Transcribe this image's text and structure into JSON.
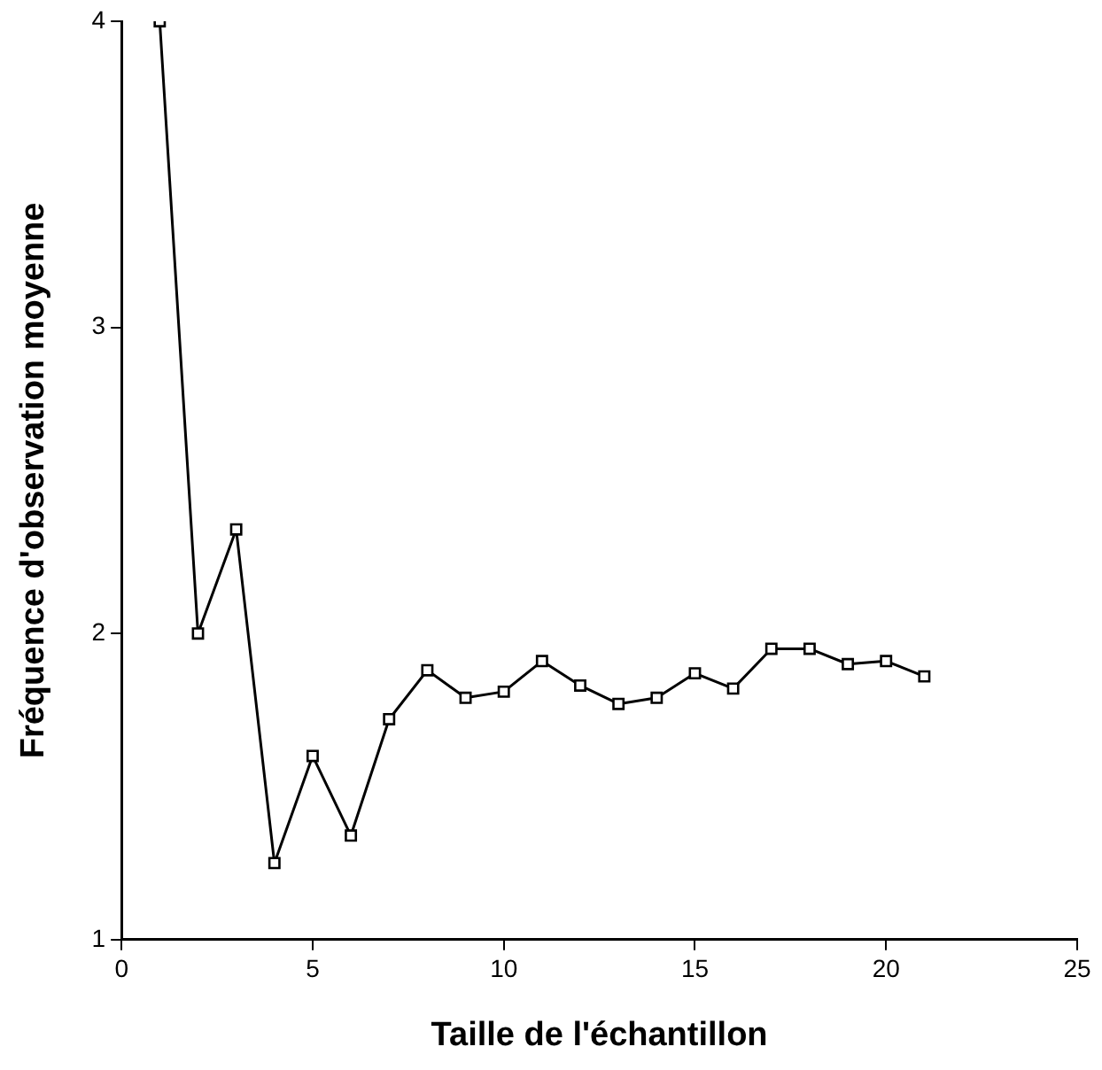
{
  "chart_data": {
    "type": "line",
    "xlabel": "Taille de l'échantillon",
    "ylabel": "Fréquence d'observation moyenne",
    "x": [
      1,
      2,
      3,
      4,
      5,
      6,
      7,
      8,
      9,
      10,
      11,
      12,
      13,
      14,
      15,
      16,
      17,
      18,
      19,
      20,
      21
    ],
    "series": [
      {
        "color": "#000000",
        "values": [
          4.0,
          2.0,
          2.34,
          1.25,
          1.6,
          1.34,
          1.72,
          1.88,
          1.79,
          1.81,
          1.91,
          1.83,
          1.77,
          1.79,
          1.87,
          1.82,
          1.95,
          1.95,
          1.9,
          1.91,
          1.86
        ]
      }
    ],
    "xlim": [
      0,
      25
    ],
    "xticks": [
      0,
      5,
      10,
      15,
      20,
      25
    ],
    "ylim": [
      1,
      4
    ],
    "yticks": [
      1,
      2,
      3,
      4
    ],
    "grid": false,
    "legend": false,
    "marker": "square",
    "line_style": "solid"
  }
}
